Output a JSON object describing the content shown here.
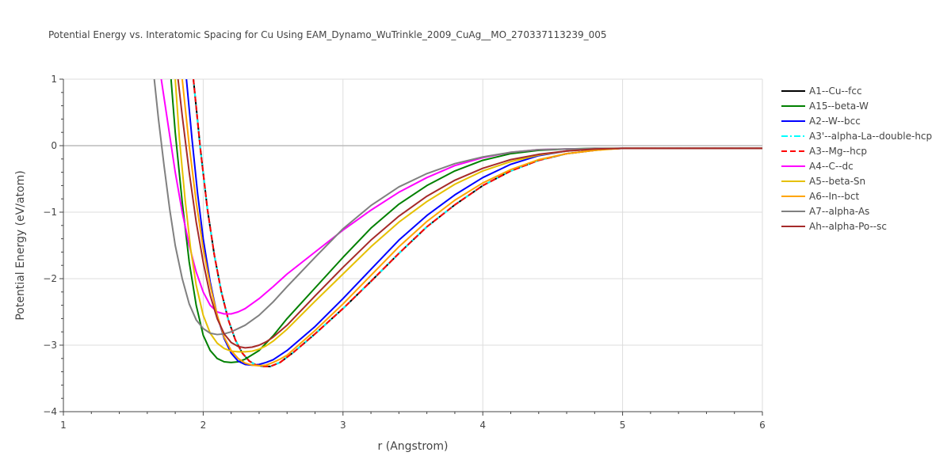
{
  "chart_data": {
    "type": "line",
    "title": "Potential Energy vs. Interatomic Spacing for Cu Using EAM_Dynamo_WuTrinkle_2009_CuAg__MO_270337113239_005",
    "xlabel": "r (Angstrom)",
    "ylabel": "Potential Energy (eV/atom)",
    "xlim": [
      1,
      6
    ],
    "ylim": [
      -4,
      1
    ],
    "xticks": [
      "1",
      "2",
      "3",
      "4",
      "5",
      "6"
    ],
    "yticks": [
      "1",
      "0",
      "−1",
      "−2",
      "−3",
      "−4"
    ],
    "grid": true,
    "legend_position": "right",
    "series": [
      {
        "name": "A1--Cu--fcc",
        "color": "#000000",
        "dash": "solid",
        "x": [
          1.93,
          1.98,
          2.03,
          2.08,
          2.13,
          2.18,
          2.23,
          2.28,
          2.33,
          2.38,
          2.43,
          2.48,
          2.55,
          2.65,
          2.8,
          3.0,
          3.2,
          3.4,
          3.6,
          3.8,
          4.0,
          4.2,
          4.4,
          4.6,
          4.8,
          4.9,
          5.0,
          6.0
        ],
        "y": [
          1.0,
          -0.05,
          -0.95,
          -1.65,
          -2.2,
          -2.62,
          -2.92,
          -3.12,
          -3.24,
          -3.3,
          -3.32,
          -3.32,
          -3.26,
          -3.1,
          -2.83,
          -2.45,
          -2.04,
          -1.62,
          -1.22,
          -0.89,
          -0.6,
          -0.38,
          -0.22,
          -0.12,
          -0.07,
          -0.05,
          -0.04,
          -0.04
        ]
      },
      {
        "name": "A15--beta-W",
        "color": "#008000",
        "dash": "solid",
        "x": [
          1.77,
          1.8,
          1.85,
          1.9,
          1.95,
          2.0,
          2.05,
          2.1,
          2.15,
          2.2,
          2.25,
          2.3,
          2.4,
          2.5,
          2.6,
          2.8,
          3.0,
          3.2,
          3.4,
          3.6,
          3.8,
          4.0,
          4.2,
          4.4,
          4.6,
          4.8,
          5.0,
          6.0
        ],
        "y": [
          1.0,
          0.2,
          -0.85,
          -1.75,
          -2.4,
          -2.85,
          -3.08,
          -3.2,
          -3.25,
          -3.26,
          -3.25,
          -3.21,
          -3.08,
          -2.86,
          -2.6,
          -2.14,
          -1.68,
          -1.24,
          -0.88,
          -0.6,
          -0.38,
          -0.22,
          -0.12,
          -0.07,
          -0.05,
          -0.04,
          -0.04,
          -0.04
        ]
      },
      {
        "name": "A2--W--bcc",
        "color": "#0000ff",
        "dash": "solid",
        "x": [
          1.88,
          1.92,
          1.96,
          2.0,
          2.05,
          2.1,
          2.15,
          2.2,
          2.25,
          2.3,
          2.35,
          2.4,
          2.45,
          2.5,
          2.6,
          2.8,
          3.0,
          3.2,
          3.4,
          3.6,
          3.8,
          4.0,
          4.2,
          4.4,
          4.6,
          4.8,
          5.0,
          6.0
        ],
        "y": [
          1.0,
          0.1,
          -0.72,
          -1.4,
          -2.05,
          -2.55,
          -2.9,
          -3.12,
          -3.24,
          -3.29,
          -3.3,
          -3.29,
          -3.26,
          -3.22,
          -3.08,
          -2.72,
          -2.3,
          -1.86,
          -1.42,
          -1.05,
          -0.74,
          -0.48,
          -0.28,
          -0.15,
          -0.08,
          -0.05,
          -0.04,
          -0.04
        ]
      },
      {
        "name": "A3'--alpha-La--double-hcp",
        "color": "#00ffff",
        "dash": "dashdot",
        "x": [
          1.93,
          1.98,
          2.03,
          2.08,
          2.13,
          2.18,
          2.23,
          2.28,
          2.33,
          2.38,
          2.43,
          2.48,
          2.55,
          2.65,
          2.8,
          3.0,
          3.2,
          3.4,
          3.6,
          3.8,
          4.0,
          4.2,
          4.4,
          4.6,
          4.8,
          4.9,
          5.0,
          6.0
        ],
        "y": [
          1.0,
          -0.05,
          -0.95,
          -1.65,
          -2.2,
          -2.62,
          -2.92,
          -3.12,
          -3.24,
          -3.3,
          -3.32,
          -3.32,
          -3.26,
          -3.1,
          -2.83,
          -2.45,
          -2.04,
          -1.62,
          -1.22,
          -0.89,
          -0.6,
          -0.38,
          -0.22,
          -0.12,
          -0.07,
          -0.05,
          -0.04,
          -0.04
        ]
      },
      {
        "name": "A3--Mg--hcp",
        "color": "#ff0000",
        "dash": "dash",
        "x": [
          1.93,
          1.98,
          2.03,
          2.08,
          2.13,
          2.18,
          2.23,
          2.28,
          2.33,
          2.38,
          2.43,
          2.48,
          2.55,
          2.65,
          2.8,
          3.0,
          3.2,
          3.4,
          3.6,
          3.8,
          4.0,
          4.2,
          4.4,
          4.6,
          4.8,
          4.9,
          5.0,
          6.0
        ],
        "y": [
          1.0,
          -0.05,
          -0.95,
          -1.65,
          -2.2,
          -2.62,
          -2.92,
          -3.12,
          -3.24,
          -3.3,
          -3.32,
          -3.32,
          -3.26,
          -3.1,
          -2.83,
          -2.45,
          -2.04,
          -1.62,
          -1.22,
          -0.89,
          -0.6,
          -0.38,
          -0.22,
          -0.12,
          -0.07,
          -0.05,
          -0.04,
          -0.04
        ]
      },
      {
        "name": "A4--C--dc",
        "color": "#ff00ff",
        "dash": "solid",
        "x": [
          1.7,
          1.75,
          1.8,
          1.85,
          1.9,
          1.95,
          2.0,
          2.05,
          2.1,
          2.15,
          2.2,
          2.25,
          2.3,
          2.4,
          2.5,
          2.6,
          2.8,
          3.0,
          3.2,
          3.4,
          3.6,
          3.8,
          4.0,
          4.2,
          4.4,
          4.6,
          5.0,
          6.0
        ],
        "y": [
          1.0,
          0.3,
          -0.4,
          -1.0,
          -1.5,
          -1.9,
          -2.2,
          -2.4,
          -2.5,
          -2.53,
          -2.53,
          -2.5,
          -2.45,
          -2.3,
          -2.12,
          -1.93,
          -1.6,
          -1.27,
          -0.97,
          -0.7,
          -0.48,
          -0.3,
          -0.18,
          -0.1,
          -0.06,
          -0.05,
          -0.04,
          -0.04
        ]
      },
      {
        "name": "A5--beta-Sn",
        "color": "#e6c000",
        "dash": "solid",
        "x": [
          1.8,
          1.83,
          1.87,
          1.91,
          1.95,
          2.0,
          2.05,
          2.1,
          2.15,
          2.2,
          2.25,
          2.3,
          2.35,
          2.4,
          2.45,
          2.5,
          2.6,
          2.8,
          3.0,
          3.2,
          3.4,
          3.6,
          3.8,
          4.0,
          4.2,
          4.4,
          4.6,
          4.8,
          5.0,
          6.0
        ],
        "y": [
          1.0,
          0.1,
          -0.8,
          -1.55,
          -2.1,
          -2.55,
          -2.82,
          -2.97,
          -3.05,
          -3.09,
          -3.1,
          -3.1,
          -3.09,
          -3.06,
          -3.01,
          -2.94,
          -2.76,
          -2.34,
          -1.93,
          -1.52,
          -1.15,
          -0.84,
          -0.58,
          -0.38,
          -0.24,
          -0.14,
          -0.08,
          -0.05,
          -0.04,
          -0.04
        ]
      },
      {
        "name": "A6--In--bct",
        "color": "#ffa500",
        "dash": "solid",
        "x": [
          1.85,
          1.9,
          1.95,
          2.0,
          2.05,
          2.1,
          2.15,
          2.2,
          2.25,
          2.3,
          2.35,
          2.4,
          2.45,
          2.5,
          2.55,
          2.6,
          2.8,
          3.0,
          3.2,
          3.4,
          3.6,
          3.8,
          4.0,
          4.2,
          4.4,
          4.6,
          4.8,
          5.0,
          6.0
        ],
        "y": [
          1.0,
          0.0,
          -0.85,
          -1.55,
          -2.1,
          -2.55,
          -2.88,
          -3.08,
          -3.2,
          -3.27,
          -3.3,
          -3.31,
          -3.3,
          -3.26,
          -3.21,
          -3.15,
          -2.78,
          -2.38,
          -1.95,
          -1.52,
          -1.14,
          -0.82,
          -0.56,
          -0.36,
          -0.21,
          -0.12,
          -0.07,
          -0.04,
          -0.04
        ]
      },
      {
        "name": "A7--alpha-As",
        "color": "#808080",
        "dash": "solid",
        "x": [
          1.65,
          1.68,
          1.72,
          1.76,
          1.8,
          1.85,
          1.9,
          1.95,
          2.0,
          2.05,
          2.1,
          2.15,
          2.2,
          2.3,
          2.4,
          2.5,
          2.6,
          2.8,
          3.0,
          3.2,
          3.4,
          3.6,
          3.8,
          4.0,
          4.2,
          4.4,
          4.6,
          5.0,
          6.0
        ],
        "y": [
          1.0,
          0.4,
          -0.3,
          -0.95,
          -1.5,
          -2.0,
          -2.38,
          -2.62,
          -2.75,
          -2.82,
          -2.84,
          -2.83,
          -2.8,
          -2.7,
          -2.55,
          -2.35,
          -2.12,
          -1.68,
          -1.25,
          -0.9,
          -0.62,
          -0.42,
          -0.27,
          -0.17,
          -0.1,
          -0.06,
          -0.05,
          -0.04,
          -0.04
        ]
      },
      {
        "name": "Ah--alpha-Po--sc",
        "color": "#a52a2a",
        "dash": "solid",
        "x": [
          1.82,
          1.85,
          1.9,
          1.95,
          2.0,
          2.05,
          2.1,
          2.15,
          2.2,
          2.25,
          2.3,
          2.35,
          2.4,
          2.45,
          2.5,
          2.6,
          2.8,
          3.0,
          3.2,
          3.4,
          3.6,
          3.8,
          4.0,
          4.2,
          4.4,
          4.6,
          4.8,
          5.0,
          6.0
        ],
        "y": [
          1.0,
          0.45,
          -0.4,
          -1.15,
          -1.75,
          -2.25,
          -2.6,
          -2.83,
          -2.96,
          -3.02,
          -3.04,
          -3.03,
          -3.0,
          -2.95,
          -2.88,
          -2.7,
          -2.26,
          -1.83,
          -1.42,
          -1.06,
          -0.76,
          -0.52,
          -0.34,
          -0.21,
          -0.13,
          -0.08,
          -0.05,
          -0.04,
          -0.04
        ]
      }
    ]
  }
}
